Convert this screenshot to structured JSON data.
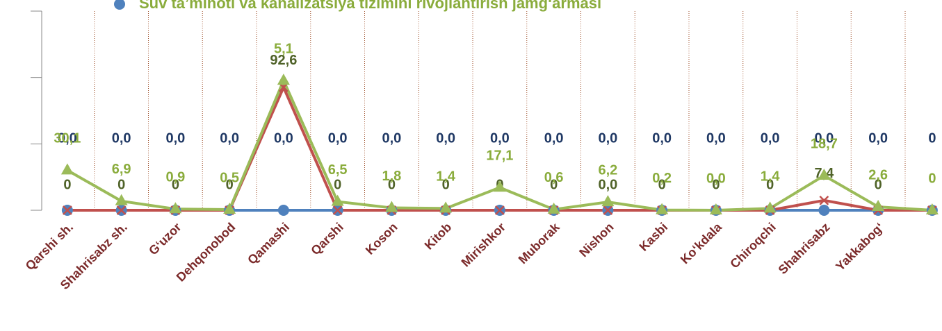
{
  "chart_data": {
    "type": "line",
    "stacked": true,
    "title": "Suv ta’minoti va kanalizatsiya tizimini rivojlantirish jamg‘armasi",
    "categories": [
      "Qarshi sh.",
      "Shahrisabz sh.",
      "G‘uzor",
      "Dehqonobod",
      "Qamashi",
      "Qarshi",
      "Koson",
      "Kitob",
      "Mirishkor",
      "Muborak",
      "Nishon",
      "Kasbi",
      "Ko‘kdala",
      "Chiroqchi",
      "Shahrisabz",
      "Yakkabog‘",
      null
    ],
    "series": [
      {
        "name": "Suv ta’minoti va kanalizatsiya tizimini rivojlantirish jamg‘armasi",
        "color": "#4f81bd",
        "marker": "circle",
        "label_color": "#1f3864",
        "values": [
          0,
          0,
          0,
          0,
          0,
          0,
          0,
          0,
          0,
          0,
          0,
          0,
          0,
          0,
          0,
          0,
          0
        ],
        "value_labels": [
          "0,0",
          "0,0",
          "0,0",
          "0,0",
          "0,0",
          "0,0",
          "0,0",
          "0,0",
          "0,0",
          "0,0",
          "0,0",
          "0,0",
          "0,0",
          "0,0",
          "0,0",
          "0,0",
          "0"
        ]
      },
      {
        "color": "#c0504d",
        "marker": "x",
        "label_color": "#4f6228",
        "values": [
          0,
          0,
          0,
          0,
          92.6,
          0,
          0,
          0,
          0,
          0,
          0,
          0,
          0,
          0,
          7.4,
          0,
          0
        ],
        "value_labels": [
          "0",
          "0",
          "0",
          "0",
          "92,6",
          "0",
          "0",
          "0",
          "0",
          "0",
          "0,0",
          "0",
          "0",
          "0",
          "7,4",
          "0",
          null
        ]
      },
      {
        "color": "#9bbb59",
        "marker": "triangle",
        "label_color": "#8aac3c",
        "values": [
          30.1,
          6.9,
          0.9,
          0.5,
          5.1,
          6.5,
          1.8,
          1.4,
          17.1,
          0.6,
          6.2,
          0.2,
          0.0,
          1.4,
          18.7,
          2.6,
          0
        ],
        "value_labels": [
          "30,1",
          "6,9",
          "0,9",
          "0,5",
          "5,1",
          "6,5",
          "1,8",
          "1,4",
          "17,1",
          "0,6",
          "6,2",
          "0,2",
          "0,0",
          "1,4",
          "18,7",
          "2,6",
          "0"
        ]
      }
    ],
    "ylim": [
      0,
      150
    ],
    "yticks": [
      0,
      50,
      100,
      150
    ],
    "legend": "top"
  }
}
